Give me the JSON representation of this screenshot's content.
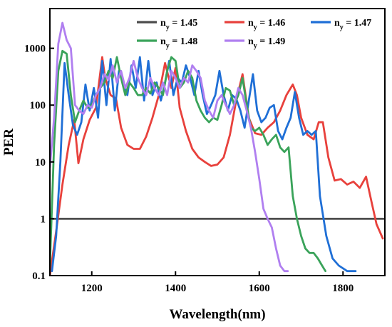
{
  "chart_data": {
    "type": "line",
    "title": "",
    "xlabel": "Wavelength(nm)",
    "ylabel": "PER",
    "xlim": [
      1100,
      1900
    ],
    "ylim": [
      0.1,
      5000
    ],
    "yscale": "log",
    "xticks": [
      1200,
      1400,
      1600,
      1800
    ],
    "yticks": [
      0.1,
      1,
      10,
      100,
      1000
    ],
    "xtick_labels": [
      "1200",
      "1400",
      "1600",
      "1800"
    ],
    "ytick_labels": [
      "0.1",
      "1",
      "10",
      "100",
      "1000"
    ],
    "grid": false,
    "legend": "top",
    "series": [
      {
        "name": "n",
        "subscript": "y",
        "value_label": " = 1.45",
        "color": "#4d4d4d",
        "x": [
          1100,
          1200,
          1300,
          1400,
          1500,
          1600,
          1700,
          1800,
          1900
        ],
        "y": [
          1,
          1,
          1,
          1,
          1,
          1,
          1,
          1,
          1
        ]
      },
      {
        "name": "n",
        "subscript": "y",
        "value_label": " = 1.46",
        "color": "#e8413c",
        "x": [
          1100,
          1115,
          1130,
          1145,
          1158,
          1168,
          1180,
          1195,
          1210,
          1225,
          1232,
          1245,
          1258,
          1270,
          1285,
          1300,
          1315,
          1330,
          1345,
          1360,
          1375,
          1390,
          1400,
          1410,
          1425,
          1440,
          1455,
          1470,
          1485,
          1500,
          1515,
          1530,
          1545,
          1560,
          1575,
          1590,
          1605,
          1620,
          1635,
          1650,
          1665,
          1680,
          1690,
          1700,
          1715,
          1730,
          1742,
          1752,
          1765,
          1780,
          1795,
          1810,
          1825,
          1840,
          1855,
          1868,
          1880,
          1895
        ],
        "y": [
          0.1,
          0.6,
          4,
          20,
          55,
          9.5,
          25,
          55,
          90,
          700,
          300,
          150,
          130,
          40,
          20,
          17,
          17,
          28,
          60,
          150,
          550,
          200,
          450,
          90,
          35,
          17,
          12,
          10,
          8.5,
          9,
          12,
          30,
          120,
          350,
          60,
          32,
          30,
          40,
          50,
          80,
          150,
          230,
          150,
          60,
          30,
          25,
          50,
          50,
          12,
          4.7,
          5,
          4,
          4.5,
          3.5,
          5.5,
          2,
          0.8,
          0.45
        ]
      },
      {
        "name": "n",
        "subscript": "y",
        "value_label": " = 1.47",
        "color": "#1f6fd6",
        "x": [
          1105,
          1115,
          1125,
          1135,
          1145,
          1155,
          1165,
          1175,
          1185,
          1195,
          1205,
          1215,
          1225,
          1235,
          1245,
          1255,
          1265,
          1275,
          1285,
          1295,
          1305,
          1315,
          1325,
          1335,
          1345,
          1355,
          1365,
          1375,
          1385,
          1395,
          1405,
          1415,
          1425,
          1435,
          1445,
          1455,
          1465,
          1475,
          1485,
          1495,
          1505,
          1515,
          1525,
          1535,
          1545,
          1555,
          1565,
          1575,
          1585,
          1595,
          1605,
          1615,
          1625,
          1635,
          1645,
          1655,
          1665,
          1675,
          1685,
          1695,
          1705,
          1715,
          1725,
          1735,
          1745,
          1760,
          1775,
          1790,
          1810,
          1830
        ],
        "y": [
          0.12,
          0.5,
          10,
          550,
          150,
          45,
          30,
          50,
          230,
          80,
          200,
          60,
          600,
          100,
          650,
          80,
          400,
          250,
          150,
          500,
          200,
          700,
          120,
          600,
          150,
          250,
          120,
          250,
          600,
          150,
          300,
          250,
          500,
          300,
          150,
          400,
          150,
          70,
          100,
          150,
          400,
          150,
          80,
          150,
          130,
          80,
          40,
          120,
          350,
          80,
          50,
          60,
          90,
          100,
          35,
          25,
          40,
          60,
          170,
          60,
          30,
          35,
          30,
          35,
          2.5,
          0.5,
          0.2,
          0.15,
          0.12,
          0.12
        ]
      },
      {
        "name": "n",
        "subscript": "y",
        "value_label": " = 1.48",
        "color": "#3aa35a",
        "x": [
          1100,
          1110,
          1120,
          1130,
          1140,
          1150,
          1160,
          1170,
          1180,
          1190,
          1200,
          1210,
          1220,
          1230,
          1240,
          1250,
          1260,
          1270,
          1280,
          1290,
          1300,
          1310,
          1320,
          1330,
          1340,
          1350,
          1360,
          1370,
          1380,
          1390,
          1400,
          1410,
          1420,
          1430,
          1440,
          1450,
          1460,
          1470,
          1480,
          1490,
          1500,
          1510,
          1520,
          1530,
          1540,
          1550,
          1560,
          1570,
          1580,
          1590,
          1600,
          1610,
          1620,
          1630,
          1640,
          1650,
          1660,
          1670,
          1680,
          1690,
          1700,
          1710,
          1720,
          1730,
          1740,
          1750,
          1758
        ],
        "y": [
          0.15,
          20,
          400,
          900,
          800,
          150,
          50,
          80,
          120,
          90,
          100,
          150,
          200,
          250,
          400,
          300,
          700,
          300,
          150,
          250,
          200,
          150,
          150,
          200,
          160,
          250,
          200,
          150,
          400,
          700,
          600,
          200,
          250,
          400,
          300,
          120,
          80,
          60,
          50,
          60,
          55,
          100,
          200,
          180,
          100,
          150,
          300,
          100,
          40,
          35,
          40,
          30,
          20,
          25,
          30,
          18,
          15,
          18,
          2.5,
          1,
          0.5,
          0.3,
          0.25,
          0.25,
          0.2,
          0.15,
          0.12
        ]
      },
      {
        "name": "n",
        "subscript": "y",
        "value_label": " = 1.49",
        "color": "#b07ff0",
        "x": [
          1100,
          1110,
          1120,
          1130,
          1140,
          1150,
          1160,
          1170,
          1180,
          1190,
          1200,
          1210,
          1220,
          1230,
          1240,
          1250,
          1260,
          1270,
          1280,
          1290,
          1300,
          1310,
          1320,
          1330,
          1340,
          1350,
          1360,
          1370,
          1380,
          1390,
          1400,
          1410,
          1420,
          1430,
          1440,
          1450,
          1460,
          1470,
          1480,
          1490,
          1500,
          1510,
          1520,
          1530,
          1540,
          1550,
          1560,
          1570,
          1580,
          1590,
          1600,
          1610,
          1620,
          1630,
          1640,
          1650,
          1660,
          1668
        ],
        "y": [
          8,
          60,
          1200,
          2800,
          1400,
          1000,
          100,
          80,
          70,
          100,
          90,
          150,
          200,
          350,
          280,
          500,
          250,
          400,
          200,
          300,
          600,
          300,
          200,
          150,
          300,
          200,
          150,
          250,
          150,
          400,
          300,
          200,
          300,
          250,
          500,
          400,
          300,
          120,
          80,
          60,
          120,
          150,
          100,
          70,
          100,
          200,
          150,
          80,
          40,
          15,
          5,
          1.5,
          1,
          0.7,
          0.3,
          0.15,
          0.12,
          0.12
        ]
      }
    ]
  }
}
